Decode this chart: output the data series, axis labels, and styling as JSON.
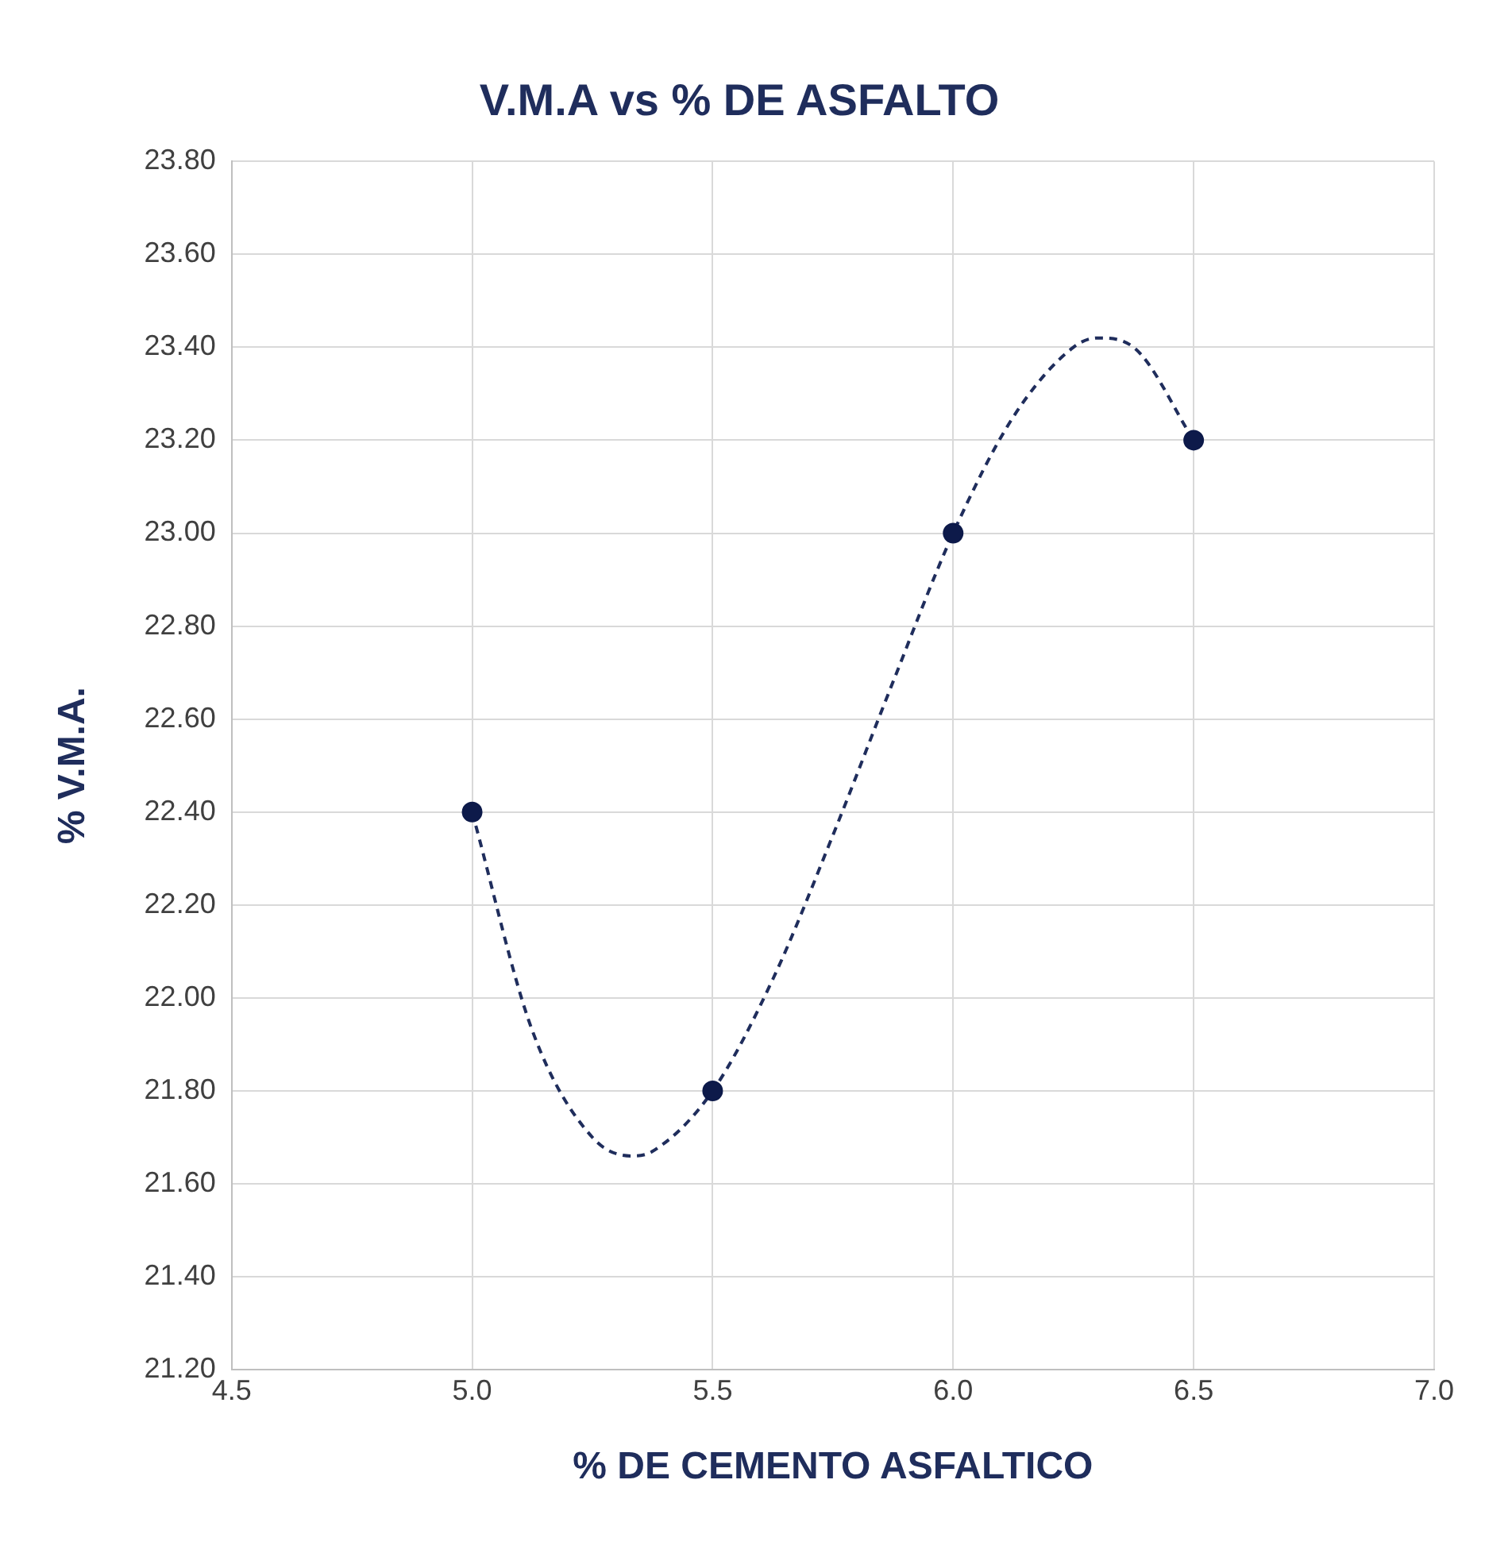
{
  "chart_data": {
    "type": "scatter",
    "title": "V.M.A vs % DE ASFALTO",
    "xlabel": "% DE CEMENTO ASFALTICO",
    "ylabel": "% V.M.A.",
    "xlim": [
      4.5,
      7.0
    ],
    "xticks": [
      4.5,
      {
        "value": 5,
        "label": "5.0"
      },
      5.5,
      {
        "value": 6,
        "label": "6.0"
      },
      6.5,
      {
        "value": 7,
        "label": "7.0"
      }
    ],
    "ylim": [
      21.2,
      23.8
    ],
    "yticks": [
      {
        "value": 21.2,
        "label": "21.20"
      },
      {
        "value": 21.4,
        "label": "21.40"
      },
      {
        "value": 21.6,
        "label": "21.60"
      },
      {
        "value": 21.8,
        "label": "21.80"
      },
      {
        "value": 22,
        "label": "22.00"
      },
      {
        "value": 22.2,
        "label": "22.20"
      },
      {
        "value": 22.4,
        "label": "22.40"
      },
      {
        "value": 22.6,
        "label": "22.60"
      },
      {
        "value": 22.8,
        "label": "22.80"
      },
      {
        "value": 23,
        "label": "23.00"
      },
      {
        "value": 23.2,
        "label": "23.20"
      },
      {
        "value": 23.4,
        "label": "23.40"
      },
      {
        "value": 23.6,
        "label": "23.60"
      },
      {
        "value": 23.8,
        "label": "23.80"
      }
    ],
    "grid": true,
    "legend": false,
    "series": [
      {
        "type": "scatter",
        "color": "#0d1a4a",
        "marker": "circle",
        "x": [
          5.0,
          5.5,
          6.0,
          6.5
        ],
        "values": [
          22.4,
          21.8,
          23.0,
          23.2
        ]
      },
      {
        "type": "line",
        "color": "#1f2d5c",
        "marker": "none",
        "line_style": "dashed",
        "x": [
          5.0,
          5.125,
          5.25,
          5.333,
          5.375,
          5.5,
          5.625,
          5.75,
          5.875,
          6.0,
          6.125,
          6.25,
          6.3,
          6.375,
          6.5
        ],
        "values": [
          22.4,
          21.93,
          21.7,
          21.66,
          21.67,
          21.8,
          22.04,
          22.35,
          22.68,
          23.0,
          23.25,
          23.4,
          23.42,
          23.4,
          23.2
        ]
      }
    ]
  }
}
